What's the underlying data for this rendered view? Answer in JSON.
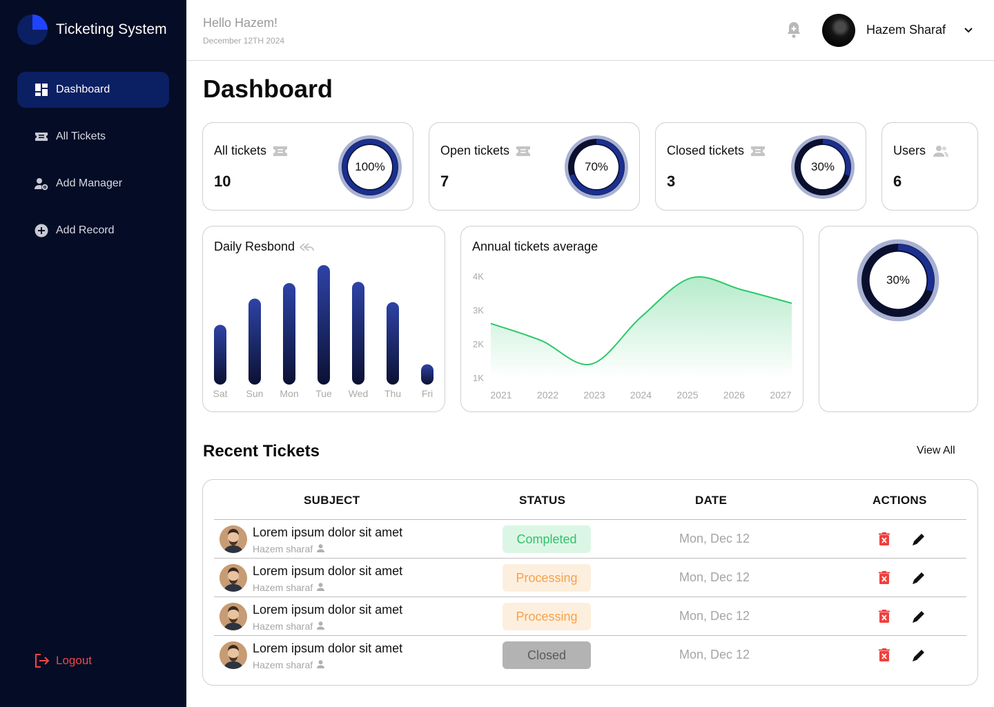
{
  "app": {
    "title": "Ticketing System"
  },
  "sidebar": {
    "items": [
      {
        "label": "Dashboard",
        "icon": "dashboard-icon",
        "active": true
      },
      {
        "label": "All Tickets",
        "icon": "ticket-icon"
      },
      {
        "label": "Add Manager",
        "icon": "user-gear-icon"
      },
      {
        "label": "Add Record",
        "icon": "plus-circle-icon"
      }
    ],
    "logout": "Logout"
  },
  "header": {
    "greeting": "Hello Hazem!",
    "date": "December 12TH 2024",
    "user_name": "Hazem Sharaf"
  },
  "page": {
    "title": "Dashboard"
  },
  "stats": [
    {
      "label": "All tickets",
      "value": "10",
      "percent_label": "100%",
      "percent": 100
    },
    {
      "label": "Open tickets",
      "value": "7",
      "percent_label": "70%",
      "percent": 70
    },
    {
      "label": "Closed tickets",
      "value": "3",
      "percent_label": "30%",
      "percent": 30
    },
    {
      "label": "Users",
      "value": "6"
    }
  ],
  "side_ring": {
    "percent_label": "30%",
    "percent": 30
  },
  "chart_data": [
    {
      "type": "bar",
      "title": "Daily Resbond",
      "categories": [
        "Sat",
        "Sun",
        "Mon",
        "Tue",
        "Wed",
        "Thu",
        "Fri"
      ],
      "values": [
        50,
        72,
        85,
        100,
        86,
        69,
        17
      ],
      "color": "#1b2a6e"
    },
    {
      "type": "area",
      "title": "Annual tickets average",
      "x": [
        "2021",
        "2022",
        "2023",
        "2024",
        "2025",
        "2026",
        "2027"
      ],
      "y": [
        2600,
        2100,
        1400,
        2800,
        3950,
        3600,
        3200
      ],
      "y_ticks": [
        "4K",
        "3K",
        "2K",
        "1K"
      ],
      "ylim": [
        1000,
        4000
      ],
      "color": "#2cc76a"
    }
  ],
  "recent": {
    "title": "Recent Tickets",
    "view_all": "View All",
    "columns": [
      "SUBJECT",
      "STATUS",
      "DATE",
      "ACTIONS"
    ],
    "rows": [
      {
        "subject": "Lorem ipsum dolor sit amet",
        "author": "Hazem sharaf",
        "status": "Completed",
        "date": "Mon, Dec 12"
      },
      {
        "subject": "Lorem ipsum dolor sit amet",
        "author": "Hazem sharaf",
        "status": "Processing",
        "date": "Mon, Dec 12"
      },
      {
        "subject": "Lorem ipsum dolor sit amet",
        "author": "Hazem sharaf",
        "status": "Processing",
        "date": "Mon, Dec 12"
      },
      {
        "subject": "Lorem ipsum dolor sit amet",
        "author": "Hazem sharaf",
        "status": "Closed",
        "date": "Mon, Dec 12"
      }
    ]
  },
  "status_colors": {
    "Completed": {
      "bg": "#dcf6e6",
      "fg": "#2fc36b"
    },
    "Processing": {
      "bg": "#fdefde",
      "fg": "#f6a14b"
    },
    "Closed": {
      "bg": "#b3b3b3",
      "fg": "#5a5a5a"
    }
  }
}
